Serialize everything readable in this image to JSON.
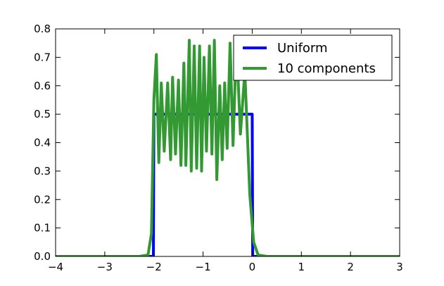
{
  "chart_data": {
    "type": "line",
    "title": "",
    "xlabel": "",
    "ylabel": "",
    "xlim": [
      -4,
      3
    ],
    "ylim": [
      0,
      0.8
    ],
    "grid": false,
    "legend_placement": "top-right",
    "x_ticks": [
      -4,
      -3,
      -2,
      -1,
      0,
      1,
      2,
      3
    ],
    "x_tick_labels": [
      "−4",
      "−3",
      "−2",
      "−1",
      "0",
      "1",
      "2",
      "3"
    ],
    "y_ticks": [
      0.0,
      0.1,
      0.2,
      0.3,
      0.4,
      0.5,
      0.6,
      0.7,
      0.8
    ],
    "y_tick_labels": [
      "0.0",
      "0.1",
      "0.2",
      "0.3",
      "0.4",
      "0.5",
      "0.6",
      "0.7",
      "0.8"
    ],
    "series": [
      {
        "name": "Uniform",
        "color": "#0000ff",
        "x": [
          -4,
          -2.01,
          -2,
          0,
          0.01,
          3
        ],
        "y": [
          0,
          0,
          0.5,
          0.5,
          0,
          0
        ]
      },
      {
        "name": "10 components",
        "color": "#339933",
        "x": [
          -4,
          -2.3,
          -2.12,
          -2.05,
          -2.0,
          -1.95,
          -1.9,
          -1.85,
          -1.79,
          -1.72,
          -1.66,
          -1.62,
          -1.56,
          -1.5,
          -1.45,
          -1.39,
          -1.35,
          -1.28,
          -1.24,
          -1.18,
          -1.13,
          -1.07,
          -1.03,
          -0.98,
          -0.93,
          -0.87,
          -0.82,
          -0.77,
          -0.72,
          -0.66,
          -0.61,
          -0.56,
          -0.51,
          -0.45,
          -0.39,
          -0.32,
          -0.24,
          -0.15,
          -0.05,
          0.03,
          0.12,
          0.3,
          3
        ],
        "y": [
          0.0,
          0.0,
          0.005,
          0.08,
          0.55,
          0.71,
          0.33,
          0.61,
          0.37,
          0.61,
          0.34,
          0.63,
          0.36,
          0.62,
          0.32,
          0.68,
          0.32,
          0.76,
          0.3,
          0.74,
          0.31,
          0.74,
          0.3,
          0.7,
          0.37,
          0.74,
          0.36,
          0.76,
          0.27,
          0.6,
          0.34,
          0.61,
          0.38,
          0.75,
          0.39,
          0.76,
          0.43,
          0.65,
          0.22,
          0.05,
          0.005,
          0.0,
          0.0
        ]
      }
    ]
  }
}
